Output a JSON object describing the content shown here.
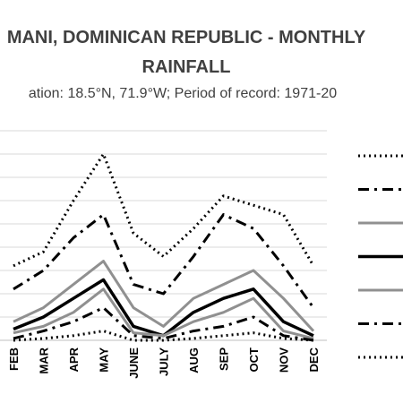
{
  "chart_data": {
    "type": "line",
    "title_line1": "MANI, DOMINICAN REPUBLIC - MONTHLY",
    "title_line2": "RAINFALL",
    "subtitle": "ation: 18.5°N, 71.9°W; Period of record: 1971-20",
    "categories": [
      "FEB",
      "MAR",
      "APR",
      "MAY",
      "JUNE",
      "JULY",
      "AUG",
      "SEP",
      "OCT",
      "NOV",
      "DEC"
    ],
    "ylim": [
      0,
      225
    ],
    "grid": true,
    "legend": "right",
    "series": [
      {
        "style": "dotted",
        "color": "#000000",
        "width": 3,
        "values": [
          80,
          95,
          150,
          200,
          115,
          90,
          120,
          155,
          145,
          135,
          80
        ]
      },
      {
        "style": "dashdot",
        "color": "#000000",
        "width": 3,
        "values": [
          55,
          75,
          110,
          135,
          60,
          50,
          90,
          135,
          120,
          80,
          35
        ]
      },
      {
        "style": "solid",
        "color": "#909090",
        "width": 3,
        "values": [
          20,
          35,
          60,
          85,
          35,
          15,
          45,
          60,
          75,
          45,
          10
        ]
      },
      {
        "style": "solid",
        "color": "#000000",
        "width": 3.5,
        "values": [
          12,
          25,
          45,
          65,
          15,
          5,
          30,
          45,
          55,
          20,
          5
        ]
      },
      {
        "style": "solid",
        "color": "#909090",
        "width": 3,
        "values": [
          8,
          15,
          30,
          55,
          8,
          5,
          20,
          30,
          45,
          10,
          2
        ]
      },
      {
        "style": "dashdot",
        "color": "#000000",
        "width": 3,
        "values": [
          2,
          10,
          20,
          35,
          5,
          2,
          10,
          15,
          25,
          5,
          0
        ]
      },
      {
        "style": "dotted",
        "color": "#000000",
        "width": 3,
        "values": [
          0,
          2,
          5,
          10,
          0,
          0,
          2,
          5,
          8,
          2,
          0
        ]
      }
    ]
  }
}
